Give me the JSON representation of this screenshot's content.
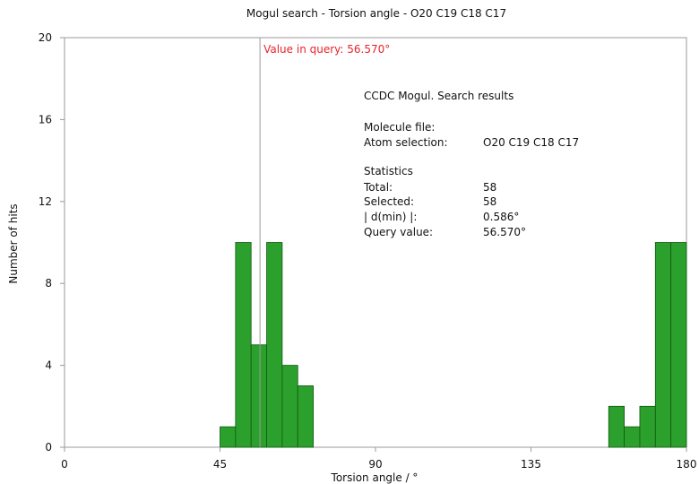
{
  "colors": {
    "bar": "#2ca02c",
    "bar_edge": "#0e5a0e",
    "query": "#e8232a",
    "axis": "#9a9a9a"
  },
  "chart_data": {
    "type": "bar",
    "title": "Mogul search - Torsion angle - O20 C19 C18 C17",
    "xlabel": "Torsion angle / °",
    "ylabel": "Number of hits",
    "xlim": [
      0,
      180
    ],
    "ylim": [
      0,
      20
    ],
    "xticks": [
      0,
      45,
      90,
      135,
      180
    ],
    "yticks": [
      0,
      4,
      8,
      12,
      16,
      20
    ],
    "grid": false,
    "bin_width": 4.5,
    "bins": [
      {
        "x0": 45,
        "x1": 49.5,
        "value": 1
      },
      {
        "x0": 49.5,
        "x1": 54,
        "value": 10
      },
      {
        "x0": 54,
        "x1": 58.5,
        "value": 5
      },
      {
        "x0": 58.5,
        "x1": 63,
        "value": 10
      },
      {
        "x0": 63,
        "x1": 67.5,
        "value": 4
      },
      {
        "x0": 67.5,
        "x1": 72,
        "value": 3
      },
      {
        "x0": 157.5,
        "x1": 162,
        "value": 2
      },
      {
        "x0": 162,
        "x1": 166.5,
        "value": 1
      },
      {
        "x0": 166.5,
        "x1": 171,
        "value": 2
      },
      {
        "x0": 171,
        "x1": 175.5,
        "value": 10
      },
      {
        "x0": 175.5,
        "x1": 180,
        "value": 10
      }
    ],
    "query_value": 56.57,
    "query_label": "Value in query: 56.570°",
    "info_panel": {
      "heading": "CCDC Mogul.  Search results",
      "rows": [
        {
          "label": "Molecule file:",
          "value": ""
        },
        {
          "label": "Atom selection:",
          "value": "O20 C19 C18 C17"
        }
      ],
      "stats_heading": "Statistics",
      "stats": [
        {
          "label": "Total:",
          "value": "58"
        },
        {
          "label": "Selected:",
          "value": "58"
        },
        {
          "label": "| d(min) |:",
          "value": "0.586°"
        },
        {
          "label": "Query value:",
          "value": "56.570°"
        }
      ]
    }
  }
}
